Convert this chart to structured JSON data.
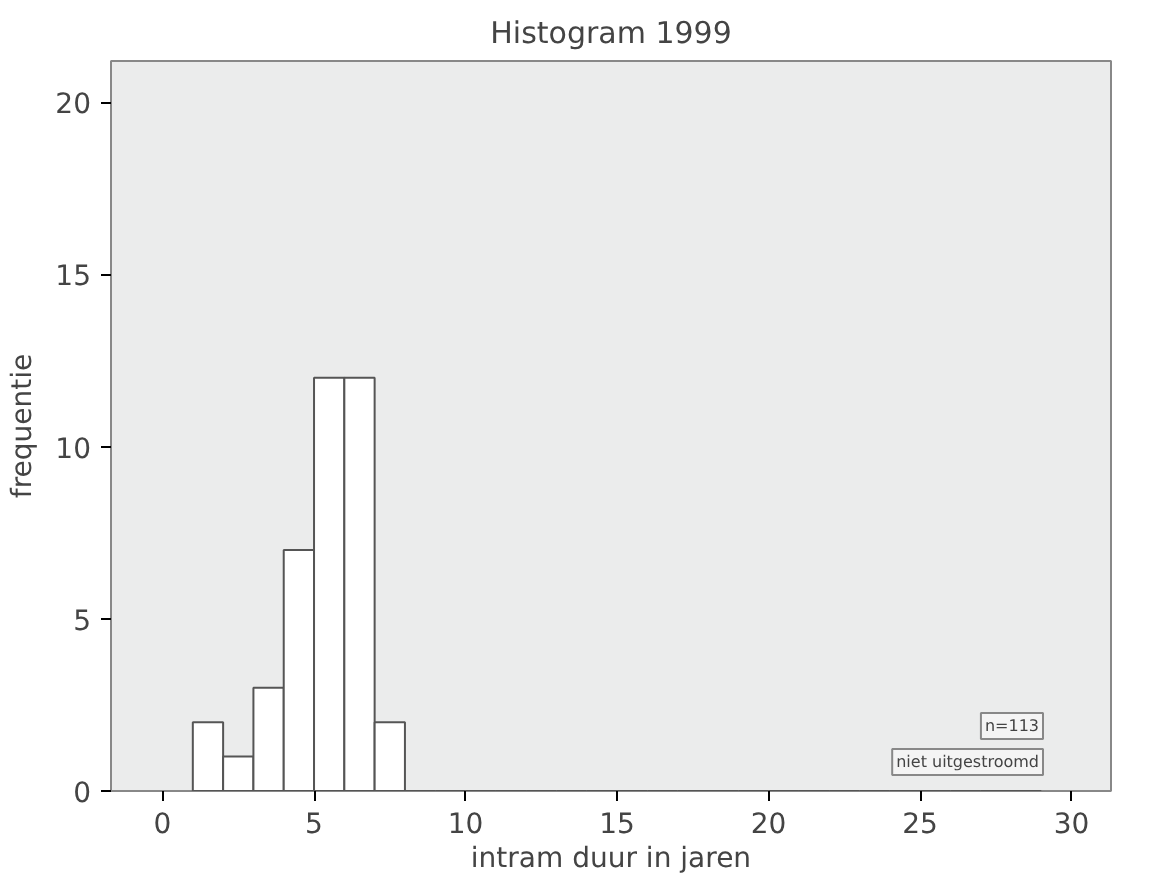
{
  "chart_data": {
    "type": "histogram",
    "title": "Histogram 1999",
    "xlabel": "intram duur in jaren",
    "ylabel": "frequentie",
    "bins": [
      1,
      2,
      3,
      4,
      5,
      6,
      7,
      8,
      9,
      10,
      11,
      12,
      13,
      14,
      15,
      16,
      17,
      18,
      19,
      20,
      21,
      22,
      23,
      24,
      25,
      26,
      27,
      28,
      29,
      30
    ],
    "values": [
      2,
      1,
      3,
      7,
      12,
      12,
      2,
      0,
      0,
      0,
      0,
      0,
      0,
      0,
      0,
      0,
      0,
      0,
      0,
      0,
      0,
      0,
      0,
      0,
      0,
      0,
      0,
      0,
      null
    ],
    "color": "#ffffff",
    "xlim": [
      -1.7,
      31.3
    ],
    "ylim": [
      0,
      21.2
    ],
    "xticks": [
      0,
      5,
      10,
      15,
      20,
      25,
      30
    ],
    "yticks": [
      0,
      5,
      10,
      15,
      20
    ],
    "annotations": [
      "n=113",
      "niet uitgestroomd"
    ],
    "grid": false
  }
}
